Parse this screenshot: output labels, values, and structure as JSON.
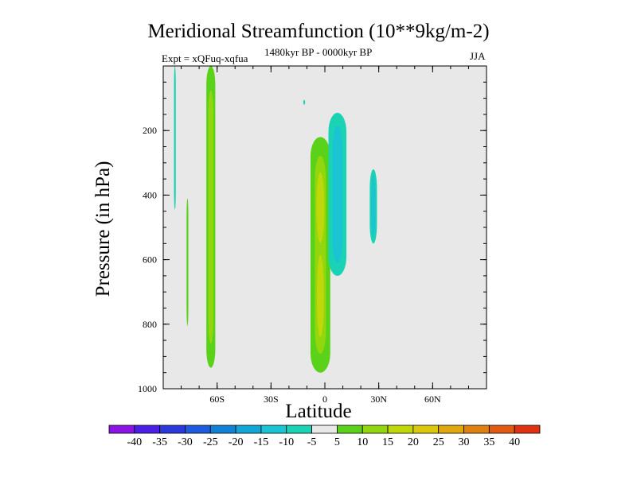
{
  "chart_data": {
    "type": "heatmap",
    "title": "Meridional Streamfunction (10**9kg/m-2)",
    "subtitle_left": "Expt = xQFuq-xqfua",
    "subtitle_center": "1480kyr BP - 0000kyr BP",
    "subtitle_right": "JJA",
    "xlabel": "Latitude",
    "ylabel": "Pressure (in hPa)",
    "xlim": [
      -90,
      90
    ],
    "ylim": [
      1000,
      0
    ],
    "x_ticks": [
      {
        "value": -60,
        "label": "60S"
      },
      {
        "value": -30,
        "label": "30S"
      },
      {
        "value": 0,
        "label": "0"
      },
      {
        "value": 30,
        "label": "30N"
      },
      {
        "value": 60,
        "label": "60N"
      }
    ],
    "y_ticks": [
      {
        "value": 200,
        "label": "200"
      },
      {
        "value": 400,
        "label": "400"
      },
      {
        "value": 600,
        "label": "600"
      },
      {
        "value": 800,
        "label": "800"
      },
      {
        "value": 1000,
        "label": "1000"
      }
    ],
    "background_level": "-5 to 5",
    "colorbar": {
      "tick_labels": [
        "-40",
        "-35",
        "-30",
        "-25",
        "-20",
        "-15",
        "-10",
        "-5",
        "5",
        "10",
        "15",
        "20",
        "25",
        "30",
        "35",
        "40"
      ],
      "colors": [
        "#8a14e6",
        "#4b1ee8",
        "#2a38dc",
        "#1e5ae0",
        "#0f82d8",
        "#10a6d8",
        "#1ac4d2",
        "#1ad2b4",
        "#e8e8e8",
        "#5ad21a",
        "#92d60e",
        "#c0d80a",
        "#dcc80a",
        "#e0a80c",
        "#e0800e",
        "#e25a10",
        "#e03212"
      ]
    },
    "features": [
      {
        "name": "positive-core-equator",
        "lat_range": [
          -8,
          3
        ],
        "pressure_range": [
          220,
          950
        ],
        "peak_value": 15,
        "level_color": "#5ad21a",
        "inner_color": "#92d60e",
        "core_color": "#c0d80a"
      },
      {
        "name": "negative-cell-10n",
        "lat_range": [
          2,
          12
        ],
        "pressure_range": [
          145,
          650
        ],
        "peak_value": -10,
        "level_color": "#1ad2b4",
        "inner_color": "#1ac4d2"
      },
      {
        "name": "negative-cell-28n",
        "lat_range": [
          25,
          29
        ],
        "pressure_range": [
          320,
          550
        ],
        "peak_value": -10,
        "level_color": "#1ad2b4",
        "inner_color": "#1ac4d2"
      },
      {
        "name": "positive-column-63s",
        "lat_range": [
          -66,
          -61
        ],
        "pressure_range": [
          0,
          935
        ],
        "peak_value": 10,
        "level_color": "#5ad21a",
        "inner_color": "#92d60e"
      },
      {
        "name": "positive-sliver-77s",
        "lat_range": [
          -77,
          -76
        ],
        "pressure_range": [
          410,
          805
        ],
        "peak_value": 5,
        "level_color": "#5ad21a"
      },
      {
        "name": "negative-sliver-83s",
        "lat_range": [
          -84,
          -83
        ],
        "pressure_range": [
          0,
          445
        ],
        "peak_value": -5,
        "level_color": "#1ad2b4"
      },
      {
        "name": "negative-speck-11s",
        "lat_range": [
          -12,
          -11
        ],
        "pressure_range": [
          105,
          120
        ],
        "peak_value": -5,
        "level_color": "#1ad2b4"
      }
    ]
  }
}
